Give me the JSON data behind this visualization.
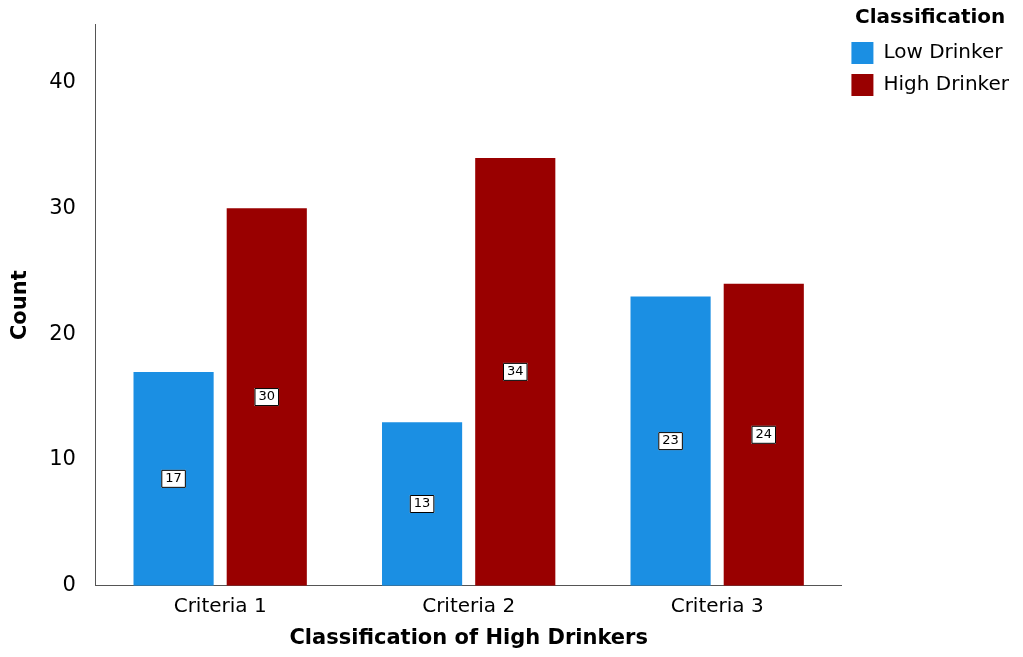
{
  "chart_data": {
    "type": "bar",
    "xlabel": "Classification of High Drinkers",
    "ylabel": "Count",
    "legend_title": "Classification",
    "categories": [
      "Criteria 1",
      "Criteria 2",
      "Criteria 3"
    ],
    "series": [
      {
        "name": "Low Drinker",
        "color": "#1b8fe3",
        "values": [
          17,
          13,
          23
        ]
      },
      {
        "name": "High Drinker",
        "color": "#990000",
        "values": [
          30,
          34,
          24
        ]
      }
    ],
    "ylim": [
      0,
      44.6
    ],
    "yticks": [
      0,
      10,
      20,
      30,
      40
    ],
    "grid": false,
    "legend": "top right",
    "data_labels": true
  }
}
